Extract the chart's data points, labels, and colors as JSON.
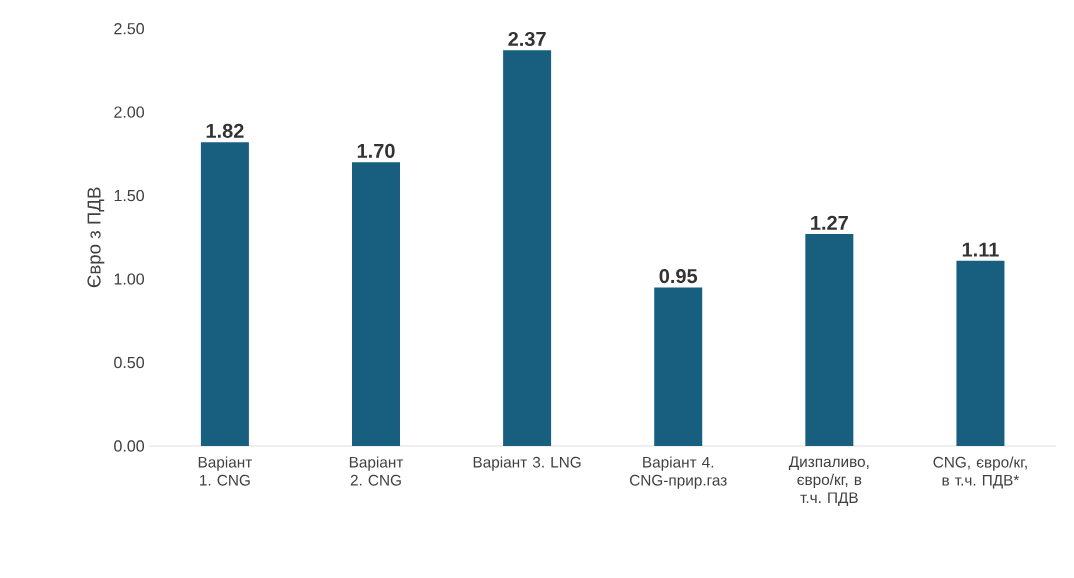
{
  "chart_data": {
    "type": "bar",
    "ylabel": "Євро з ПДВ",
    "categories": [
      "Варіант 1. CNG",
      "Варіант 2. CNG",
      "Варіант 3. LNG",
      "Варіант 4. CNG-прир.газ",
      "Дизпаливо, євро/кг, в т.ч. ПДВ",
      "CNG, євро/кг, в т.ч. ПДВ*"
    ],
    "values": [
      1.82,
      1.7,
      2.37,
      0.95,
      1.27,
      1.11
    ],
    "color": "#175e7f",
    "value_labels": [
      "1.82",
      "1.70",
      "2.37",
      "0.95",
      "1.27",
      "1.11"
    ],
    "ylim": [
      0,
      2.5
    ],
    "yticks": [
      {
        "value": 0,
        "label": "0.00"
      },
      {
        "value": 0.5,
        "label": "0.50"
      },
      {
        "value": 1,
        "label": "1.00"
      },
      {
        "value": 1.5,
        "label": "1.50"
      },
      {
        "value": 2,
        "label": "2.00"
      },
      {
        "value": 2.5,
        "label": "2.50"
      }
    ]
  }
}
